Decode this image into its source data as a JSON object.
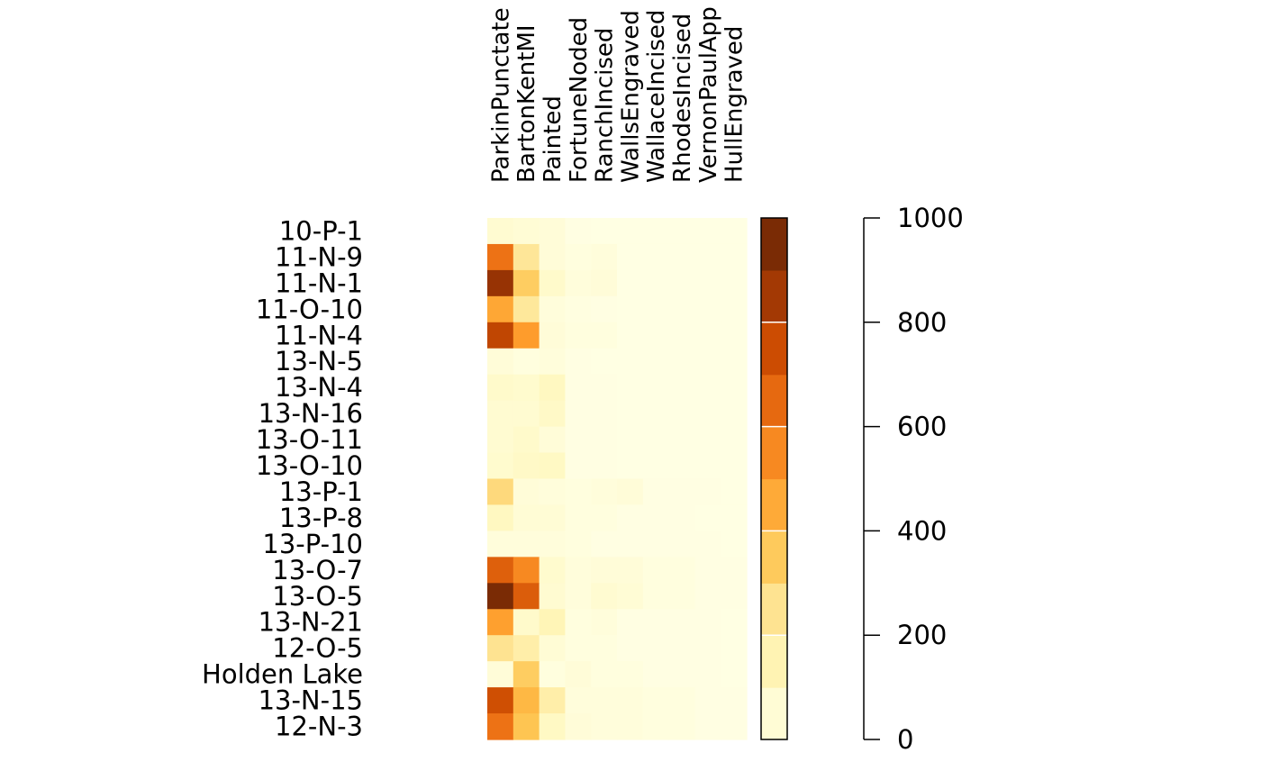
{
  "chart_data": {
    "type": "heatmap",
    "title": "",
    "xlabel": "",
    "ylabel": "",
    "columns": [
      "ParkinPunctate",
      "BartonKentMI",
      "Painted",
      "FortuneNoded",
      "RanchIncised",
      "WallsEngraved",
      "WallaceIncised",
      "RhodesIncised",
      "VernonPaulApp",
      "HullEngraved"
    ],
    "rows": [
      "10-P-1",
      "11-N-9",
      "11-N-1",
      "11-O-10",
      "11-N-4",
      "13-N-5",
      "13-N-4",
      "13-N-16",
      "13-O-11",
      "13-O-10",
      "13-P-1",
      "13-P-8",
      "13-P-10",
      "13-O-7",
      "13-O-5",
      "13-N-21",
      "12-O-5",
      "Holden Lake",
      "13-N-15",
      "12-N-3"
    ],
    "values": [
      [
        60,
        50,
        40,
        10,
        5,
        5,
        5,
        5,
        5,
        5
      ],
      [
        620,
        230,
        40,
        20,
        30,
        5,
        5,
        5,
        5,
        5
      ],
      [
        880,
        340,
        80,
        30,
        40,
        5,
        5,
        5,
        5,
        5
      ],
      [
        460,
        220,
        30,
        15,
        10,
        5,
        5,
        5,
        5,
        5
      ],
      [
        780,
        490,
        40,
        20,
        20,
        5,
        5,
        5,
        5,
        5
      ],
      [
        40,
        20,
        30,
        10,
        5,
        5,
        5,
        5,
        5,
        5
      ],
      [
        80,
        70,
        110,
        10,
        10,
        5,
        5,
        5,
        5,
        5
      ],
      [
        60,
        60,
        90,
        10,
        10,
        5,
        5,
        5,
        5,
        5
      ],
      [
        60,
        80,
        40,
        10,
        10,
        5,
        5,
        5,
        5,
        5
      ],
      [
        70,
        90,
        100,
        10,
        10,
        5,
        5,
        5,
        5,
        5
      ],
      [
        290,
        40,
        30,
        20,
        30,
        40,
        10,
        10,
        10,
        5
      ],
      [
        110,
        50,
        50,
        20,
        20,
        10,
        10,
        10,
        5,
        5
      ],
      [
        30,
        30,
        30,
        20,
        10,
        10,
        10,
        10,
        10,
        5
      ],
      [
        680,
        550,
        70,
        30,
        40,
        40,
        20,
        20,
        10,
        10
      ],
      [
        950,
        690,
        60,
        30,
        60,
        50,
        20,
        20,
        10,
        10
      ],
      [
        480,
        80,
        140,
        20,
        30,
        10,
        10,
        10,
        10,
        5
      ],
      [
        250,
        180,
        50,
        20,
        20,
        10,
        10,
        10,
        10,
        5
      ],
      [
        40,
        340,
        20,
        40,
        20,
        20,
        10,
        10,
        10,
        5
      ],
      [
        740,
        410,
        180,
        30,
        30,
        30,
        20,
        20,
        10,
        10
      ],
      [
        620,
        370,
        100,
        40,
        30,
        30,
        20,
        20,
        10,
        10
      ]
    ],
    "zlim": [
      0,
      1000
    ],
    "colorbar": {
      "ticks": [
        "0",
        "200",
        "400",
        "600",
        "800",
        "1000"
      ],
      "tick_values": [
        0,
        200,
        400,
        600,
        800,
        1000
      ]
    },
    "colors": {
      "low": "#ffffe5",
      "stops": [
        "#ffffe5",
        "#fff7bc",
        "#fee391",
        "#fec44f",
        "#fe9929",
        "#ec7014",
        "#cc4c02",
        "#993404",
        "#662506"
      ],
      "background": "#ffffff",
      "text": "#000000"
    },
    "grid": false,
    "legend": "right"
  }
}
